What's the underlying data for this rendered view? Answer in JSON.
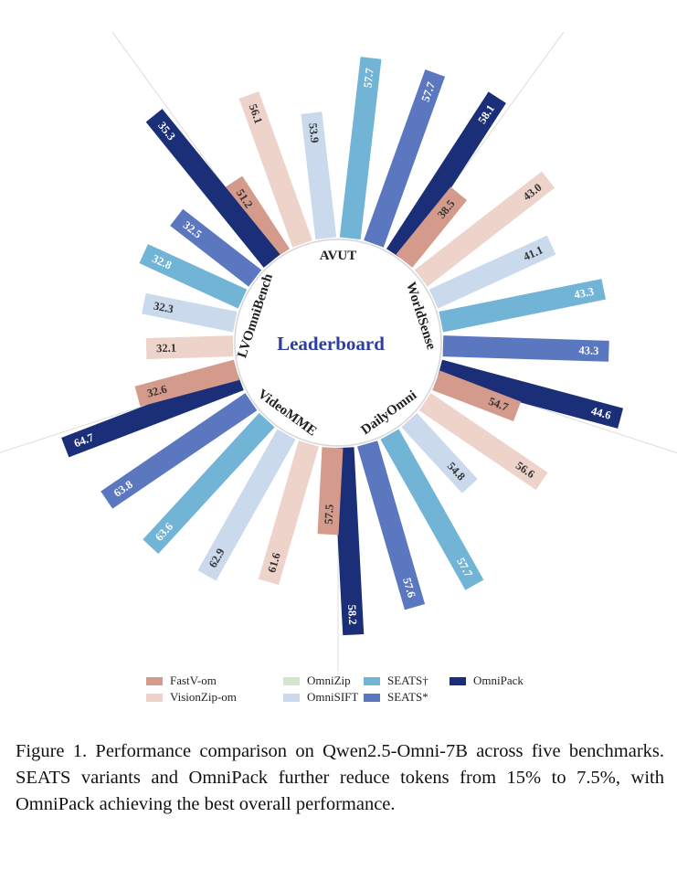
{
  "chart_data": {
    "type": "radial-bar",
    "center_label": "Leaderboard",
    "groups": [
      {
        "name": "AVUT",
        "values": [
          51.2,
          56.1,
          null,
          53.9,
          57.7,
          57.7,
          58.1
        ]
      },
      {
        "name": "WorldSense",
        "values": [
          38.5,
          43.0,
          null,
          41.1,
          43.3,
          43.3,
          44.6
        ]
      },
      {
        "name": "DailyOmni",
        "values": [
          54.7,
          56.6,
          null,
          54.8,
          57.7,
          57.6,
          58.2
        ]
      },
      {
        "name": "VideoMME",
        "values": [
          57.5,
          61.6,
          null,
          62.9,
          63.6,
          63.8,
          64.7
        ]
      },
      {
        "name": "LVOmniBench",
        "values": [
          32.6,
          32.1,
          null,
          32.3,
          32.8,
          32.5,
          35.3
        ]
      }
    ],
    "series": [
      {
        "name": "FastV-om",
        "color": "#d49a8c"
      },
      {
        "name": "VisionZip-om",
        "color": "#eed3cb"
      },
      {
        "name": "OmniZip",
        "color": "#d3e6cd"
      },
      {
        "name": "OmniSIFT",
        "color": "#cad9ec"
      },
      {
        "name": "SEATS†",
        "color": "#72b4d6"
      },
      {
        "name": "SEATS*",
        "color": "#5a77bf"
      },
      {
        "name": "OmniPack",
        "color": "#1b2f78"
      }
    ]
  },
  "caption": "Figure 1. Performance comparison on Qwen2.5-Omni-7B across five benchmarks. SEATS variants and OmniPack further reduce tokens from 15% to 7.5%, with OmniPack achieving the best overall performance."
}
